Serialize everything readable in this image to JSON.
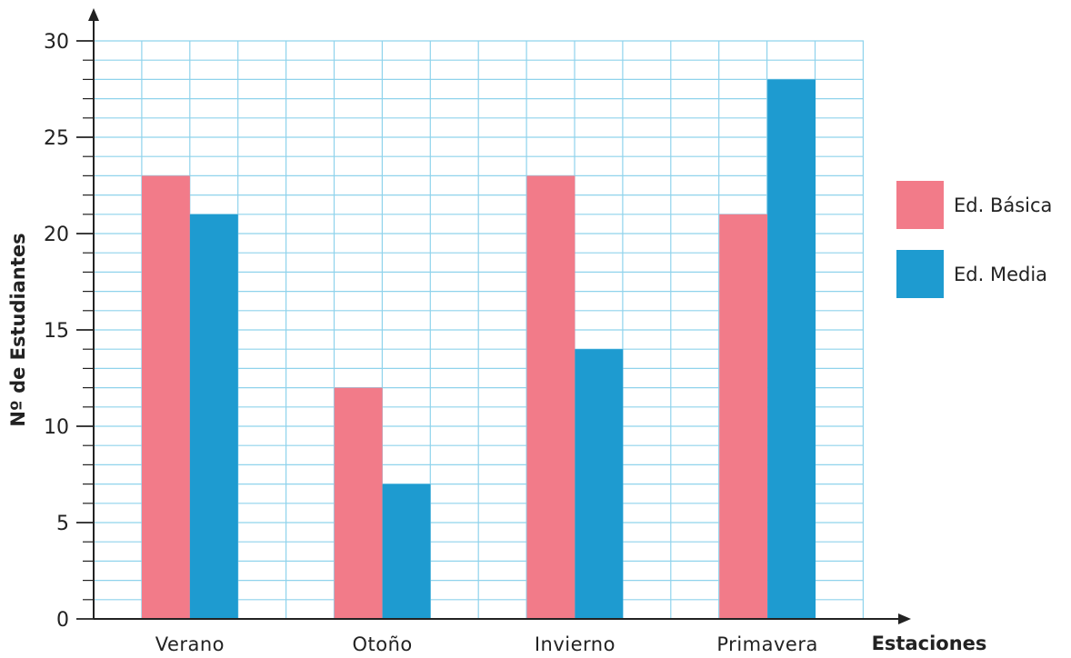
{
  "chart_data": {
    "type": "bar",
    "categories": [
      "Verano",
      "Otoño",
      "Invierno",
      "Primavera"
    ],
    "series": [
      {
        "name": "Ed. Básica",
        "values": [
          23,
          12,
          23,
          21
        ],
        "color": "#f27b89"
      },
      {
        "name": "Ed. Media",
        "values": [
          21,
          7,
          14,
          28
        ],
        "color": "#1e9bd0"
      }
    ],
    "xlabel": "Estaciones",
    "ylabel": "Nº de Estudiantes",
    "ylim": [
      0,
      30
    ],
    "yticks": [
      "0",
      "5",
      "10",
      "15",
      "20",
      "25",
      "30"
    ],
    "grid": true,
    "grid_color": "#8fd3ec",
    "legend_position": "right"
  }
}
